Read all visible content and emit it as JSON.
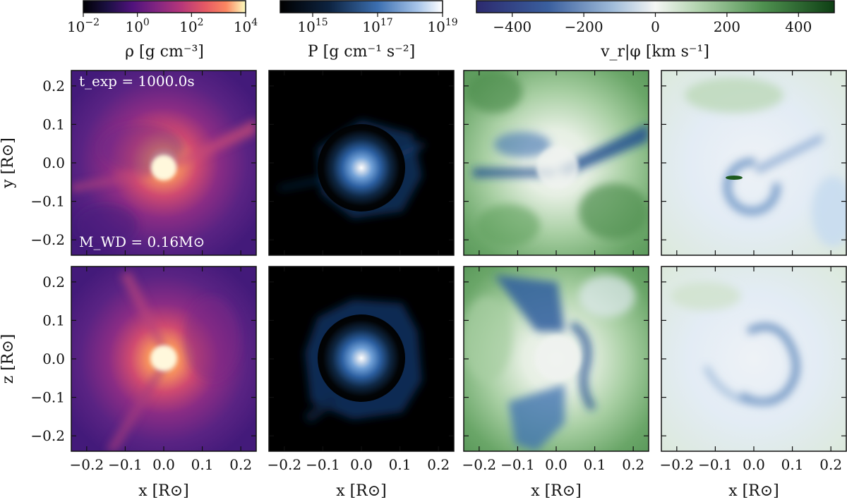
{
  "chart_data": {
    "type": "heatmap",
    "title": "",
    "rows": [
      {
        "name": "xy-plane",
        "ylabel": "y [R⊙]"
      },
      {
        "name": "xz-plane",
        "ylabel": "z [R⊙]"
      }
    ],
    "columns": [
      {
        "name": "density",
        "colormap": "magma"
      },
      {
        "name": "pressure",
        "colormap": "blues-dark"
      },
      {
        "name": "radial-velocity",
        "colormap": "diverging-blue-green"
      },
      {
        "name": "azimuthal-velocity",
        "colormap": "diverging-blue-green"
      }
    ],
    "xlabel": "x [R⊙]",
    "xlim": [
      -0.24,
      0.24
    ],
    "ylim": [
      -0.24,
      0.24
    ],
    "xticks": [
      "−0.2",
      "−0.1",
      "0.0",
      "0.1",
      "0.2"
    ],
    "yticks": [
      "0.2",
      "0.1",
      "0.0",
      "−0.1",
      "−0.2"
    ],
    "annotations": {
      "time": "t_exp = 1000.0s",
      "mass": "M_WD = 0.16M⊙"
    },
    "colorbars": [
      {
        "name": "density",
        "label": "ρ [g cm⁻³]",
        "scale": "log",
        "range": [
          0.01,
          10000
        ],
        "ticks": [
          {
            "base": "10",
            "exp": "−2"
          },
          {
            "base": "10",
            "exp": "0"
          },
          {
            "base": "10",
            "exp": "2"
          },
          {
            "base": "10",
            "exp": "4"
          }
        ]
      },
      {
        "name": "pressure",
        "label": "P [g cm⁻¹ s⁻²]",
        "scale": "log",
        "range": [
          100000000000000.0,
          1e+19
        ],
        "ticks": [
          {
            "base": "10",
            "exp": "15"
          },
          {
            "base": "10",
            "exp": "17"
          },
          {
            "base": "10",
            "exp": "19"
          }
        ]
      },
      {
        "name": "velocity",
        "label": "v_r|φ [km s⁻¹]",
        "scale": "linear",
        "range": [
          -500,
          500
        ],
        "ticks": [
          "−400",
          "−200",
          "0",
          "200",
          "400"
        ]
      }
    ]
  }
}
